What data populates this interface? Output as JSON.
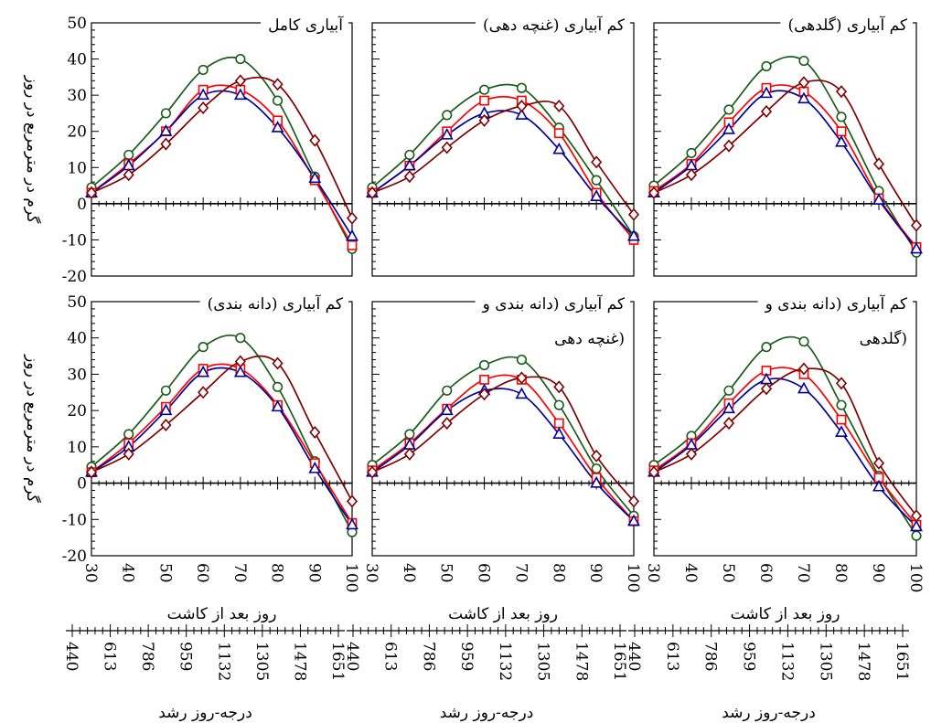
{
  "chart_data": {
    "type": "line",
    "ylabel": "گرم در مترمربع در روز",
    "xlabel": "روز بعد از کاشت",
    "x2label": "درجه-روز رشد",
    "x": [
      30,
      40,
      50,
      60,
      70,
      80,
      90,
      100
    ],
    "x_ticks": [
      "30",
      "40",
      "50",
      "60",
      "70",
      "80",
      "90",
      "100"
    ],
    "x2_ticks": [
      "440",
      "613",
      "786",
      "959",
      "1132",
      "1305",
      "1478",
      "1651"
    ],
    "y_ticks": [
      "50",
      "40",
      "30",
      "20",
      "10",
      "0",
      "-10",
      "-20"
    ],
    "ylim": [
      -20,
      50
    ],
    "xlim": [
      30,
      100
    ],
    "grid": false,
    "series_colors": [
      "#1a5c1a",
      "#ff0000",
      "#000099",
      "#800000"
    ],
    "series_markers": [
      "circle",
      "square",
      "triangle",
      "diamond"
    ],
    "panels": [
      {
        "title_lines": [
          "آبیاری کامل"
        ],
        "series": [
          {
            "marker": "circle",
            "values": [
              4.5,
              13.5,
              25.0,
              37.0,
              40.0,
              28.5,
              7.5,
              -12.5
            ]
          },
          {
            "marker": "square",
            "values": [
              3.0,
              11.0,
              20.0,
              31.5,
              31.5,
              23.0,
              6.5,
              -11.5
            ]
          },
          {
            "marker": "triangle",
            "values": [
              3.0,
              10.5,
              20.0,
              30.0,
              30.0,
              21.0,
              7.0,
              -9.0
            ]
          },
          {
            "marker": "diamond",
            "values": [
              3.0,
              8.0,
              16.5,
              26.5,
              34.0,
              33.0,
              17.5,
              -4.0
            ]
          }
        ]
      },
      {
        "title_lines": [
          "کم آبیاری (غنچه دهی)"
        ],
        "series": [
          {
            "marker": "circle",
            "values": [
              4.5,
              13.5,
              24.5,
              31.5,
              32.0,
              21.0,
              6.5,
              -9.0
            ]
          },
          {
            "marker": "square",
            "values": [
              3.0,
              10.5,
              20.0,
              28.5,
              28.5,
              19.5,
              3.0,
              -10.0
            ]
          },
          {
            "marker": "triangle",
            "values": [
              3.0,
              10.5,
              19.0,
              25.0,
              24.5,
              15.0,
              2.0,
              -9.0
            ]
          },
          {
            "marker": "diamond",
            "values": [
              3.0,
              7.5,
              15.5,
              23.0,
              27.0,
              27.0,
              11.5,
              -3.0
            ]
          }
        ]
      },
      {
        "title_lines": [
          "کم آبیاری (گلدهی)"
        ],
        "series": [
          {
            "marker": "circle",
            "values": [
              5.0,
              14.0,
              26.0,
              38.0,
              39.5,
              24.0,
              3.5,
              -13.5
            ]
          },
          {
            "marker": "square",
            "values": [
              3.5,
              11.0,
              22.5,
              32.0,
              31.0,
              20.0,
              1.5,
              -12.0
            ]
          },
          {
            "marker": "triangle",
            "values": [
              3.0,
              10.5,
              20.5,
              30.5,
              29.0,
              17.0,
              1.0,
              -12.5
            ]
          },
          {
            "marker": "diamond",
            "values": [
              3.0,
              8.0,
              16.0,
              25.5,
              33.5,
              31.0,
              11.0,
              -6.0
            ]
          }
        ]
      },
      {
        "title_lines": [
          "کم آبیاری (دانه بندی)"
        ],
        "series": [
          {
            "marker": "circle",
            "values": [
              4.5,
              13.5,
              25.5,
              37.5,
              40.0,
              26.5,
              6.0,
              -13.5
            ]
          },
          {
            "marker": "square",
            "values": [
              3.0,
              11.0,
              21.0,
              31.5,
              31.5,
              21.5,
              5.5,
              -11.0
            ]
          },
          {
            "marker": "triangle",
            "values": [
              3.0,
              10.0,
              20.0,
              30.5,
              30.5,
              21.0,
              4.0,
              -11.5
            ]
          },
          {
            "marker": "diamond",
            "values": [
              3.0,
              8.0,
              16.0,
              25.0,
              33.5,
              33.0,
              14.0,
              -5.0
            ]
          }
        ]
      },
      {
        "title_lines": [
          "کم آبیاری (دانه بندی و",
          "غنچه دهی)"
        ],
        "series": [
          {
            "marker": "circle",
            "values": [
              5.0,
              13.5,
              25.5,
              32.5,
              34.0,
              21.5,
              4.0,
              -9.0
            ]
          },
          {
            "marker": "square",
            "values": [
              3.5,
              11.0,
              20.5,
              28.5,
              28.5,
              16.5,
              1.5,
              -10.5
            ]
          },
          {
            "marker": "triangle",
            "values": [
              3.0,
              10.5,
              20.0,
              25.5,
              24.5,
              13.5,
              0.0,
              -10.5
            ]
          },
          {
            "marker": "diamond",
            "values": [
              3.0,
              8.0,
              16.5,
              24.5,
              29.0,
              26.5,
              7.5,
              -5.0
            ]
          }
        ]
      },
      {
        "title_lines": [
          "کم آبیاری (دانه بندی و",
          "گلدهی)"
        ],
        "series": [
          {
            "marker": "circle",
            "values": [
              5.0,
              13.0,
              25.5,
              37.5,
              39.0,
              21.5,
              2.0,
              -14.5
            ]
          },
          {
            "marker": "square",
            "values": [
              3.5,
              11.0,
              22.0,
              31.0,
              30.0,
              17.5,
              1.5,
              -11.5
            ]
          },
          {
            "marker": "triangle",
            "values": [
              3.0,
              10.5,
              20.5,
              28.5,
              26.0,
              14.0,
              -1.0,
              -12.0
            ]
          },
          {
            "marker": "diamond",
            "values": [
              3.0,
              8.0,
              16.5,
              26.0,
              31.5,
              27.5,
              5.5,
              -9.0
            ]
          }
        ]
      }
    ]
  }
}
